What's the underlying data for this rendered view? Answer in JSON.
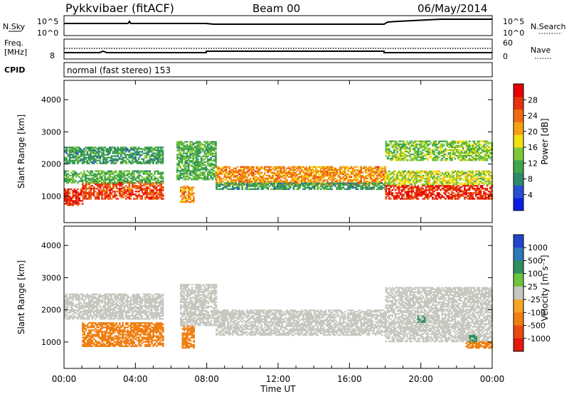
{
  "header": {
    "title": "Pykkvibaer (fitACF)",
    "beam": "Beam 00",
    "date": "06/May/2014"
  },
  "noise_panel": {
    "left_label": "N.Sky",
    "left_ticks": [
      "10^5",
      "10^0"
    ],
    "right_label": "N.Search",
    "right_ticks": [
      "10^5",
      "10^0"
    ]
  },
  "freq_panel": {
    "left_label_line1": "Freq.",
    "left_label_line2": "[MHz]",
    "left_tick": "8",
    "right_label": "Nave",
    "right_ticks": [
      "60",
      "0"
    ]
  },
  "cpid_panel": {
    "label": "CPID",
    "text": "normal (fast stereo) 153"
  },
  "x_axis": {
    "label": "Time UT",
    "ticks": [
      "00:00",
      "04:00",
      "08:00",
      "12:00",
      "16:00",
      "20:00",
      "00:00"
    ]
  },
  "colors": {
    "power_scale": [
      "#0a1fe6",
      "#2a4fd4",
      "#2e8a6a",
      "#3fa64a",
      "#7fc83a",
      "#f2e010",
      "#f5a011",
      "#f06a14",
      "#e6320f",
      "#e60000"
    ],
    "velocity_scale": [
      "#2244cc",
      "#2e77bb",
      "#2f8f5e",
      "#6cc53a",
      "#c7c7c0",
      "#f5a623",
      "#f07f12",
      "#ea4a10",
      "#e41a0c"
    ]
  },
  "chart_data": [
    {
      "type": "heatmap",
      "name": "power",
      "ylabel": "Slant Range [km]",
      "yticks": [
        "1000",
        "2000",
        "3000",
        "4000"
      ],
      "ylim": [
        180,
        4600
      ],
      "xlim_hours": [
        0,
        24
      ],
      "colorbar": {
        "label": "Power [dB]",
        "ticks": [
          "4",
          "8",
          "12",
          "16",
          "20",
          "24",
          "28"
        ],
        "range": [
          0,
          32
        ]
      },
      "bands": [
        {
          "t": [
            0,
            1
          ],
          "r": [
            700,
            1200
          ],
          "v": 28
        },
        {
          "t": [
            1,
            5.5
          ],
          "r": [
            900,
            1400
          ],
          "v": 26
        },
        {
          "t": [
            0,
            5.5
          ],
          "r": [
            1400,
            1800
          ],
          "v": 12
        },
        {
          "t": [
            0,
            5.5
          ],
          "r": [
            2000,
            2500
          ],
          "v": 10
        },
        {
          "t": [
            6.5,
            7.3
          ],
          "r": [
            800,
            1300
          ],
          "v": 22
        },
        {
          "t": [
            6.3,
            8.5
          ],
          "r": [
            1500,
            2700
          ],
          "v": 12
        },
        {
          "t": [
            8.5,
            18
          ],
          "r": [
            1350,
            1900
          ],
          "v": 22
        },
        {
          "t": [
            8.5,
            18
          ],
          "r": [
            1200,
            1400
          ],
          "v": 10
        },
        {
          "t": [
            18,
            24
          ],
          "r": [
            900,
            1350
          ],
          "v": 28
        },
        {
          "t": [
            18,
            24
          ],
          "r": [
            1350,
            1800
          ],
          "v": 16
        },
        {
          "t": [
            18,
            24
          ],
          "r": [
            2100,
            2700
          ],
          "v": 14
        }
      ]
    },
    {
      "type": "heatmap",
      "name": "velocity",
      "ylabel": "Slant Range [km]",
      "yticks": [
        "1000",
        "2000",
        "3000",
        "4000"
      ],
      "ylim": [
        180,
        4600
      ],
      "xlim_hours": [
        0,
        24
      ],
      "colorbar": {
        "label": "Velocity [m s⁻¹]",
        "ticks": [
          "1000",
          "500",
          "100",
          "25",
          "-25",
          "-100",
          "-500",
          "-1000"
        ]
      },
      "bands": [
        {
          "t": [
            1,
            5.5
          ],
          "r": [
            850,
            1600
          ],
          "v": -300
        },
        {
          "t": [
            0,
            5.5
          ],
          "r": [
            1700,
            2500
          ],
          "v": 0
        },
        {
          "t": [
            6.6,
            7.3
          ],
          "r": [
            800,
            1500
          ],
          "v": -300
        },
        {
          "t": [
            6.5,
            8.5
          ],
          "r": [
            1500,
            2800
          ],
          "v": 0
        },
        {
          "t": [
            8.5,
            18
          ],
          "r": [
            1200,
            2000
          ],
          "v": 0
        },
        {
          "t": [
            18,
            24
          ],
          "r": [
            1000,
            2700
          ],
          "v": 0
        },
        {
          "t": [
            22.5,
            24
          ],
          "r": [
            800,
            1000
          ],
          "v": -300
        },
        {
          "t": [
            19.8,
            20.2
          ],
          "r": [
            1600,
            1800
          ],
          "v": 150
        },
        {
          "t": [
            22.7,
            23.1
          ],
          "r": [
            1000,
            1200
          ],
          "v": 150
        }
      ]
    }
  ]
}
